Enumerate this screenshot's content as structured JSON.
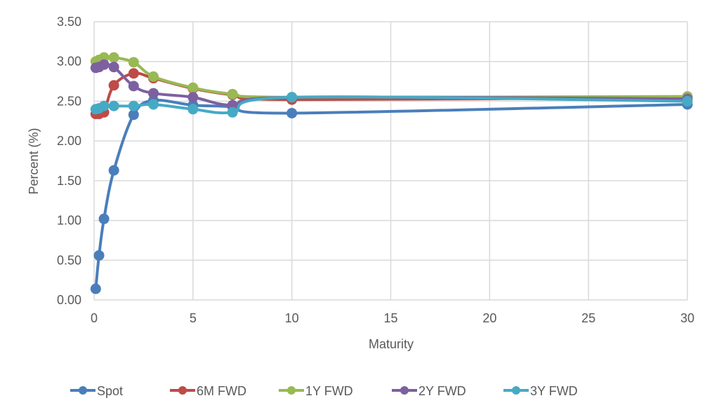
{
  "chart_data": {
    "type": "line",
    "title": "",
    "xlabel": "Maturity",
    "ylabel": "Percent (%)",
    "xlim": [
      0,
      30
    ],
    "ylim": [
      0,
      3.5
    ],
    "xticks": [
      0,
      5,
      10,
      15,
      20,
      25,
      30
    ],
    "xtick_labels": [
      "0",
      "5",
      "10",
      "15",
      "20",
      "25",
      "30"
    ],
    "yticks": [
      0,
      0.5,
      1.0,
      1.5,
      2.0,
      2.5,
      3.0,
      3.5
    ],
    "ytick_labels": [
      "0.00",
      "0.50",
      "1.00",
      "1.50",
      "2.00",
      "2.50",
      "3.00",
      "3.50"
    ],
    "grid": true,
    "smooth": true,
    "legend_position": "bottom",
    "x": [
      0.083,
      0.25,
      0.5,
      1,
      2,
      3,
      5,
      7,
      10,
      30
    ],
    "series": [
      {
        "name": "Spot",
        "color": "#4a7ebb",
        "values": [
          0.14,
          0.56,
          1.02,
          1.63,
          2.33,
          2.51,
          2.45,
          2.43,
          2.35,
          2.46
        ]
      },
      {
        "name": "6M FWD",
        "color": "#be4b48",
        "values": [
          2.34,
          2.34,
          2.36,
          2.7,
          2.85,
          2.79,
          2.66,
          2.58,
          2.52,
          2.55
        ]
      },
      {
        "name": "1Y FWD",
        "color": "#98b954",
        "values": [
          3.0,
          3.02,
          3.05,
          3.05,
          2.99,
          2.81,
          2.67,
          2.59,
          2.55,
          2.56
        ]
      },
      {
        "name": "2Y FWD",
        "color": "#7d60a0",
        "values": [
          2.92,
          2.93,
          2.96,
          2.93,
          2.69,
          2.6,
          2.55,
          2.45,
          2.55,
          2.53
        ]
      },
      {
        "name": "3Y FWD",
        "color": "#46aac5",
        "values": [
          2.4,
          2.41,
          2.44,
          2.44,
          2.44,
          2.46,
          2.4,
          2.36,
          2.55,
          2.5
        ]
      }
    ]
  }
}
